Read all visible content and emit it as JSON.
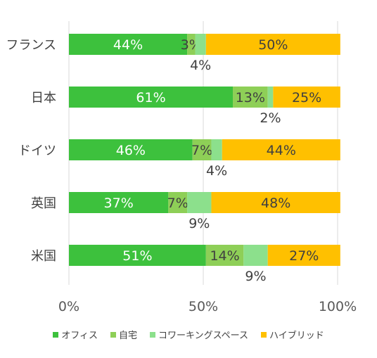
{
  "chart_data": {
    "type": "bar",
    "orientation": "horizontal",
    "stacked": true,
    "categories": [
      "フランス",
      "日本",
      "ドイツ",
      "英国",
      "米国"
    ],
    "series": [
      {
        "name": "オフィス",
        "color": "#3DC13D",
        "values": [
          44,
          61,
          46,
          37,
          51
        ]
      },
      {
        "name": "自宅",
        "color": "#8ECF57",
        "values": [
          3,
          13,
          7,
          7,
          14
        ]
      },
      {
        "name": "コワーキングスペース",
        "color": "#8CE08C",
        "values": [
          4,
          2,
          4,
          9,
          9
        ]
      },
      {
        "name": "ハイブリッド",
        "color": "#FFC000",
        "values": [
          50,
          25,
          44,
          48,
          27
        ]
      }
    ],
    "x_ticks": [
      "0%",
      "50%",
      "100%"
    ],
    "xlim": [
      0,
      100
    ],
    "grid": true,
    "legend_position": "bottom"
  }
}
